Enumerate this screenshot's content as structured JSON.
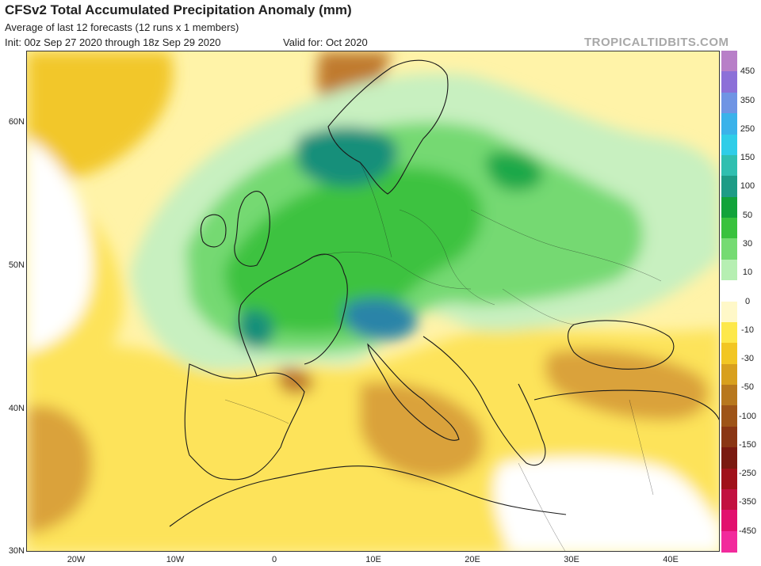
{
  "header": {
    "title": "CFSv2 Total Accumulated Precipitation Anomaly (mm)",
    "subtitle": "Average of last 12 forecasts (12 runs x 1 members)",
    "init": "Init: 00z Sep 27 2020 through 18z Sep 29 2020",
    "valid": "Valid for: Oct 2020",
    "brand": "TROPICALTIDBITS.COM"
  },
  "map": {
    "lat_labels": [
      "60N",
      "50N",
      "40N",
      "30N"
    ],
    "lon_labels": [
      "20W",
      "10W",
      "0",
      "10E",
      "20E",
      "30E",
      "40E"
    ]
  },
  "legend": {
    "labels": [
      "450",
      "350",
      "250",
      "150",
      "100",
      "50",
      "30",
      "10",
      "0",
      "-10",
      "-30",
      "-50",
      "-100",
      "-150",
      "-250",
      "-350",
      "-450"
    ],
    "colors": [
      "#b87fc8",
      "#8c70d8",
      "#6f94e4",
      "#3ab2ea",
      "#2fcde8",
      "#30bfb0",
      "#1e9c86",
      "#12a33a",
      "#39c23d",
      "#75db72",
      "#b6efb2",
      "#ffffff",
      "#fff8c8",
      "#fde84a",
      "#f2c623",
      "#d8a01e",
      "#b8781e",
      "#9e5418",
      "#8a3614",
      "#7a1a10",
      "#a0121a",
      "#c21240",
      "#e2106e",
      "#f22a9c"
    ]
  },
  "palette": {
    "water": "#ffffff",
    "dry_light": "#fff3a8",
    "dry": "#fde35a",
    "dry_mid": "#f2c72a",
    "dry_strong": "#daa23a",
    "dry_deep": "#c07a2e",
    "wet_light": "#c8f0c0",
    "wet": "#74d972",
    "wet_mid": "#3ec240",
    "wet_strong": "#1fa84a",
    "wet_deep": "#198f7a",
    "wet_peak": "#2a84a8",
    "border": "#1a1a1a"
  }
}
